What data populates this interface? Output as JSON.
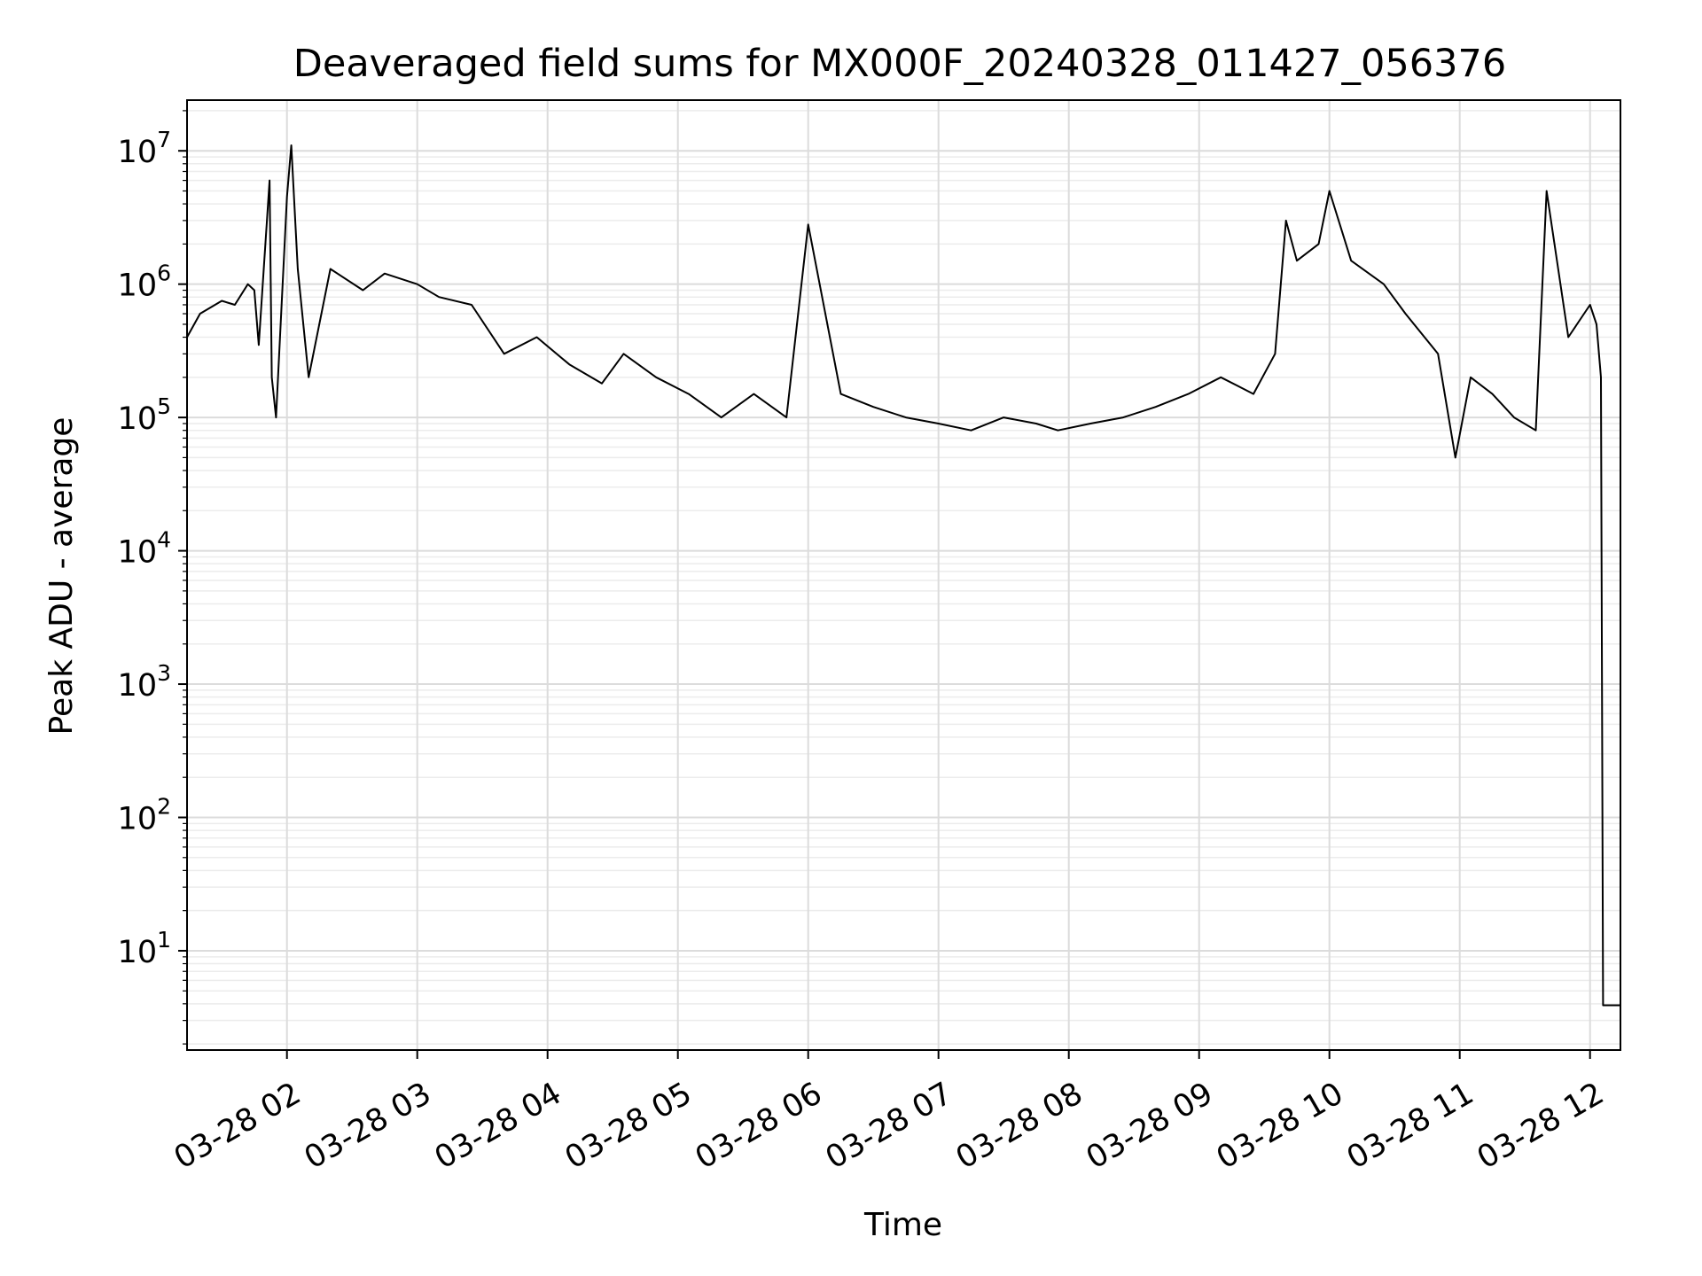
{
  "chart_data": {
    "type": "line",
    "title": "Deaveraged field sums for MX000F_20240328_011427_056376",
    "xlabel": "Time",
    "ylabel": "Peak ADU - average",
    "yscale": "log",
    "grid": true,
    "line_color": "#000000",
    "x_tick_labels": [
      "03-28 02",
      "03-28 03",
      "03-28 04",
      "03-28 05",
      "03-28 06",
      "03-28 07",
      "03-28 08",
      "03-28 09",
      "03-28 10",
      "03-28 11",
      "03-28 12"
    ],
    "x_ticks": [
      "2024-03-28 02:00",
      "2024-03-28 03:00",
      "2024-03-28 04:00",
      "2024-03-28 05:00",
      "2024-03-28 06:00",
      "2024-03-28 07:00",
      "2024-03-28 08:00",
      "2024-03-28 09:00",
      "2024-03-28 10:00",
      "2024-03-28 11:00",
      "2024-03-28 12:00"
    ],
    "y_ticks": [
      10,
      100,
      1000,
      10000,
      100000,
      1000000,
      10000000
    ],
    "xlim": [
      "2024-03-28 01:14",
      "2024-03-28 12:14"
    ],
    "ylim": [
      1.8,
      24000000
    ],
    "series": [
      {
        "x": [
          "2024-03-28 01:14",
          "2024-03-28 01:20",
          "2024-03-28 01:30",
          "2024-03-28 01:36",
          "2024-03-28 01:42",
          "2024-03-28 01:45",
          "2024-03-28 01:47",
          "2024-03-28 01:52",
          "2024-03-28 01:53",
          "2024-03-28 01:55",
          "2024-03-28 02:00",
          "2024-03-28 02:02",
          "2024-03-28 02:05",
          "2024-03-28 02:10",
          "2024-03-28 02:20",
          "2024-03-28 02:35",
          "2024-03-28 02:45",
          "2024-03-28 03:00",
          "2024-03-28 03:10",
          "2024-03-28 03:25",
          "2024-03-28 03:40",
          "2024-03-28 03:55",
          "2024-03-28 04:10",
          "2024-03-28 04:25",
          "2024-03-28 04:35",
          "2024-03-28 04:50",
          "2024-03-28 05:05",
          "2024-03-28 05:20",
          "2024-03-28 05:35",
          "2024-03-28 05:50",
          "2024-03-28 06:00",
          "2024-03-28 06:15",
          "2024-03-28 06:30",
          "2024-03-28 06:45",
          "2024-03-28 07:00",
          "2024-03-28 07:15",
          "2024-03-28 07:30",
          "2024-03-28 07:45",
          "2024-03-28 07:55",
          "2024-03-28 08:10",
          "2024-03-28 08:25",
          "2024-03-28 08:40",
          "2024-03-28 08:55",
          "2024-03-28 09:10",
          "2024-03-28 09:25",
          "2024-03-28 09:35",
          "2024-03-28 09:40",
          "2024-03-28 09:45",
          "2024-03-28 09:55",
          "2024-03-28 10:00",
          "2024-03-28 10:10",
          "2024-03-28 10:25",
          "2024-03-28 10:35",
          "2024-03-28 10:50",
          "2024-03-28 10:58",
          "2024-03-28 11:05",
          "2024-03-28 11:15",
          "2024-03-28 11:25",
          "2024-03-28 11:35",
          "2024-03-28 11:40",
          "2024-03-28 11:50",
          "2024-03-28 12:00",
          "2024-03-28 12:03",
          "2024-03-28 12:05",
          "2024-03-28 12:06",
          "2024-03-28 12:14"
        ],
        "y": [
          400000,
          600000,
          750000,
          700000,
          1000000,
          900000,
          350000,
          6000000,
          200000,
          100000,
          4500000,
          11000000,
          1300000,
          200000,
          1300000,
          900000,
          1200000,
          1000000,
          800000,
          700000,
          300000,
          400000,
          250000,
          180000,
          300000,
          200000,
          150000,
          100000,
          150000,
          100000,
          2800000,
          150000,
          120000,
          100000,
          90000,
          80000,
          100000,
          90000,
          80000,
          90000,
          100000,
          120000,
          150000,
          200000,
          150000,
          300000,
          3000000,
          1500000,
          2000000,
          5000000,
          1500000,
          1000000,
          600000,
          300000,
          50000,
          200000,
          150000,
          100000,
          80000,
          5000000,
          400000,
          700000,
          500000,
          200000,
          3.9,
          3.9
        ]
      }
    ]
  }
}
